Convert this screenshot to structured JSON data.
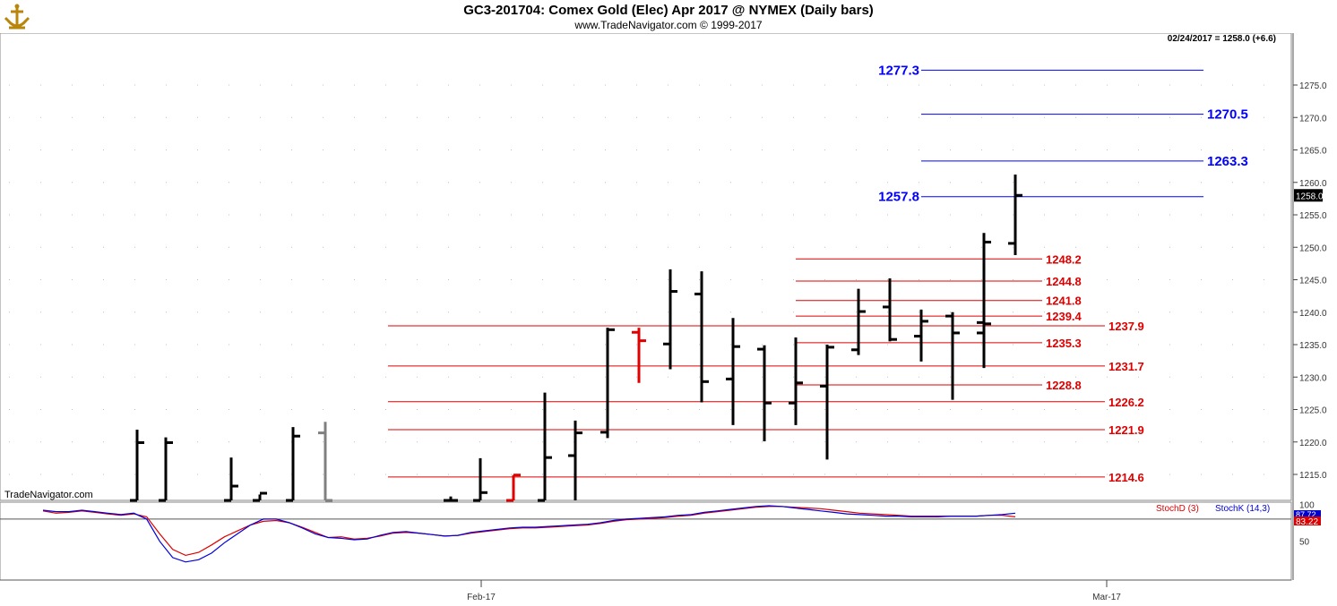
{
  "header": {
    "title": "GC3-201704:  Comex Gold (Elec) Apr 2017 @ NYMEX  (Daily bars)",
    "subtitle": "www.TradeNavigator.com © 1999-2017",
    "last_bar_info": "02/24/2017 = 1258.0 (+6.6)",
    "watermark": "TradeNavigator.com",
    "logo_icon": "anchor-icon"
  },
  "colors": {
    "bar": "#000000",
    "bar_up_red": "#e00000",
    "bar_gray": "#808080",
    "resistance": "#0000ff",
    "support": "#dd0000",
    "stoch_d": "#dd0000",
    "stoch_k": "#0000dd"
  },
  "chart_data": [
    {
      "type": "ohlc",
      "yaxis": {
        "range": [
          1211,
          1283
        ],
        "ticks": [
          "1215.0",
          "1220.0",
          "1225.0",
          "1230.0",
          "1235.0",
          "1240.0",
          "1245.0",
          "1250.0",
          "1255.0",
          "1260.0",
          "1265.0",
          "1270.0",
          "1275.0"
        ],
        "last_price_label": "1258.0"
      },
      "xaxis": {
        "labels": [
          "Feb-17",
          "Mar-17"
        ]
      },
      "bars": [
        {
          "high": 1221.9,
          "low": 1211,
          "open": 1211,
          "close": 1219.9,
          "color": "black"
        },
        {
          "high": 1220.7,
          "low": 1211,
          "open": 1211,
          "close": 1219.9,
          "color": "black"
        },
        {
          "high": 1217.6,
          "low": 1211,
          "open": 1211,
          "close": 1213.2,
          "color": "black"
        },
        {
          "high": 1211.9,
          "low": 1211,
          "open": 1211,
          "close": 1212.1,
          "color": "black"
        },
        {
          "high": 1222.3,
          "low": 1211,
          "open": 1211,
          "close": 1220.9,
          "color": "black"
        },
        {
          "high": 1223.1,
          "low": 1211,
          "open": 1221.4,
          "close": 1211,
          "color": "gray"
        },
        {
          "high": 1211.6,
          "low": 1211,
          "open": 1211,
          "close": 1211,
          "color": "black"
        },
        {
          "high": 1217.5,
          "low": 1211,
          "open": 1211,
          "close": 1212.2,
          "color": "black"
        },
        {
          "high": 1214.9,
          "low": 1211,
          "open": 1211,
          "close": 1214.9,
          "color": "red"
        },
        {
          "high": 1227.6,
          "low": 1211,
          "open": 1211,
          "close": 1217.6,
          "color": "black"
        },
        {
          "high": 1223.3,
          "low": 1211,
          "open": 1217.9,
          "close": 1221.4,
          "color": "black"
        },
        {
          "high": 1237.6,
          "low": 1220.6,
          "open": 1221.5,
          "close": 1237.3,
          "color": "black"
        },
        {
          "high": 1237.6,
          "low": 1229.1,
          "open": 1236.9,
          "close": 1235.6,
          "color": "red"
        },
        {
          "high": 1246.6,
          "low": 1231.2,
          "open": 1235.1,
          "close": 1243.2,
          "color": "black"
        },
        {
          "high": 1246.3,
          "low": 1226.1,
          "open": 1242.8,
          "close": 1229.3,
          "color": "black"
        },
        {
          "high": 1239.1,
          "low": 1222.6,
          "open": 1229.7,
          "close": 1234.7,
          "color": "black"
        },
        {
          "high": 1234.9,
          "low": 1220.1,
          "open": 1234.3,
          "close": 1226.0,
          "color": "black"
        },
        {
          "high": 1236.1,
          "low": 1222.6,
          "open": 1226.0,
          "close": 1229.1,
          "color": "black"
        },
        {
          "high": 1235.0,
          "low": 1217.3,
          "open": 1228.6,
          "close": 1234.6,
          "color": "black"
        },
        {
          "high": 1243.6,
          "low": 1233.4,
          "open": 1234.2,
          "close": 1240.1,
          "color": "black"
        },
        {
          "high": 1245.2,
          "low": 1235.5,
          "open": 1240.8,
          "close": 1235.8,
          "color": "black"
        },
        {
          "high": 1240.4,
          "low": 1232.4,
          "open": 1236.3,
          "close": 1238.6,
          "color": "black"
        },
        {
          "high": 1240.0,
          "low": 1226.5,
          "open": 1239.4,
          "close": 1236.8,
          "color": "black"
        },
        {
          "high": 1242.0,
          "low": 1231.4,
          "open": 1236.8,
          "close": 1238.2,
          "color": "black"
        },
        {
          "high": 1252.2,
          "low": 1236.2,
          "open": 1238.4,
          "close": 1250.8,
          "color": "black"
        },
        {
          "high": 1261.2,
          "low": 1248.8,
          "open": 1250.6,
          "close": 1258.0,
          "color": "black"
        }
      ],
      "levels": [
        {
          "value": 1277.3,
          "label": "1277.3",
          "kind": "resistance",
          "label_side": "left"
        },
        {
          "value": 1270.5,
          "label": "1270.5",
          "kind": "resistance",
          "label_side": "right"
        },
        {
          "value": 1263.3,
          "label": "1263.3",
          "kind": "resistance",
          "label_side": "right"
        },
        {
          "value": 1257.8,
          "label": "1257.8",
          "kind": "resistance",
          "label_side": "left"
        },
        {
          "value": 1248.2,
          "label": "1248.2",
          "kind": "support",
          "label_side": "right"
        },
        {
          "value": 1244.8,
          "label": "1244.8",
          "kind": "support",
          "label_side": "right"
        },
        {
          "value": 1241.8,
          "label": "1241.8",
          "kind": "support",
          "label_side": "right"
        },
        {
          "value": 1239.4,
          "label": "1239.4",
          "kind": "support",
          "label_side": "right"
        },
        {
          "value": 1237.9,
          "label": "1237.9",
          "kind": "support",
          "label_side": "right"
        },
        {
          "value": 1235.3,
          "label": "1235.3",
          "kind": "support",
          "label_side": "right"
        },
        {
          "value": 1231.7,
          "label": "1231.7",
          "kind": "support",
          "label_side": "right"
        },
        {
          "value": 1228.8,
          "label": "1228.8",
          "kind": "support",
          "label_side": "right"
        },
        {
          "value": 1226.2,
          "label": "1226.2",
          "kind": "support",
          "label_side": "right"
        },
        {
          "value": 1221.9,
          "label": "1221.9",
          "kind": "support",
          "label_side": "right"
        },
        {
          "value": 1214.6,
          "label": "1214.6",
          "kind": "support",
          "label_side": "right"
        }
      ]
    },
    {
      "type": "line",
      "title": "Stochastic",
      "yaxis": {
        "range": [
          0,
          100
        ],
        "ticks": [
          "100",
          "50"
        ],
        "reference_line": 80
      },
      "series": [
        {
          "name": "StochD (3)",
          "color": "#dd0000",
          "last_value": "83.22",
          "values": [
            91,
            88,
            89,
            91,
            89,
            87,
            85,
            87,
            83,
            60,
            39,
            31,
            35,
            45,
            56,
            64,
            72,
            77,
            78,
            75,
            69,
            62,
            55,
            56,
            53,
            54,
            57,
            61,
            62,
            61,
            59,
            57,
            58,
            61,
            63,
            65,
            67,
            68,
            68,
            69,
            70,
            71,
            72,
            74,
            77,
            79,
            80,
            81,
            82,
            84,
            85,
            88,
            90,
            92,
            94,
            96,
            97,
            97,
            96,
            95,
            94,
            92,
            90,
            88,
            87,
            86,
            85,
            84,
            84,
            84,
            84,
            84,
            84,
            85,
            85,
            83
          ]
        },
        {
          "name": "StochK (14,3)",
          "color": "#0000dd",
          "last_value": "87.72",
          "values": [
            92,
            90,
            90,
            92,
            90,
            88,
            86,
            88,
            80,
            50,
            28,
            22,
            25,
            34,
            48,
            60,
            72,
            80,
            80,
            75,
            68,
            60,
            55,
            54,
            52,
            53,
            58,
            62,
            63,
            61,
            59,
            57,
            58,
            62,
            64,
            66,
            68,
            69,
            69,
            70,
            71,
            72,
            73,
            75,
            78,
            80,
            81,
            82,
            83,
            85,
            86,
            89,
            91,
            93,
            95,
            97,
            98,
            97,
            95,
            93,
            91,
            89,
            87,
            86,
            85,
            84,
            84,
            83,
            83,
            83,
            84,
            84,
            84,
            85,
            86,
            88
          ]
        }
      ]
    }
  ]
}
